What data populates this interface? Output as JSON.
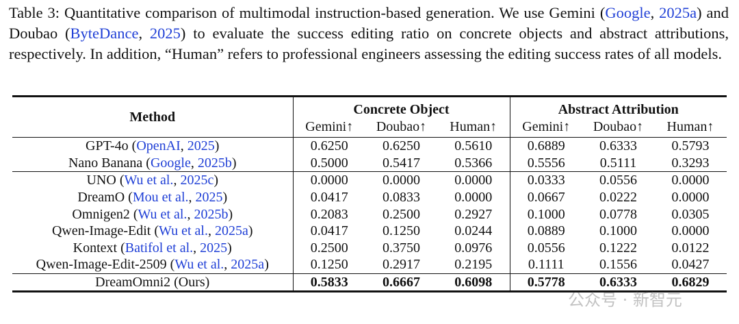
{
  "caption": {
    "parts": [
      {
        "text": "Table 3:  Quantitative comparison of multimodal instruction-based generation.  We use Gemini ("
      },
      {
        "text": "Google",
        "cite": true
      },
      {
        "text": ", "
      },
      {
        "text": "2025a",
        "cite": true
      },
      {
        "text": ") and Doubao ("
      },
      {
        "text": "ByteDance",
        "cite": true
      },
      {
        "text": ", "
      },
      {
        "text": "2025",
        "cite": true
      },
      {
        "text": ") to evaluate the success editing ratio on concrete objects and abstract attributions, respectively. In addition, “Human” refers to professional engineers assessing the editing success rates of all models."
      }
    ]
  },
  "table": {
    "header": {
      "method": "Method",
      "groups": [
        "Concrete Object",
        "Abstract Attribution"
      ],
      "columns": [
        "Gemini↑",
        "Doubao↑",
        "Human↑",
        "Gemini↑",
        "Doubao↑",
        "Human↑"
      ]
    },
    "sections": [
      [
        {
          "method": [
            {
              "text": "GPT-4o ("
            },
            {
              "text": "OpenAI",
              "cite": true
            },
            {
              "text": ", "
            },
            {
              "text": "2025",
              "cite": true
            },
            {
              "text": ")"
            }
          ],
          "values": [
            "0.6250",
            "0.6250",
            "0.5610",
            "0.6889",
            "0.6333",
            "0.5793"
          ]
        },
        {
          "method": [
            {
              "text": "Nano Banana ("
            },
            {
              "text": "Google",
              "cite": true
            },
            {
              "text": ", "
            },
            {
              "text": "2025b",
              "cite": true
            },
            {
              "text": ")"
            }
          ],
          "values": [
            "0.5000",
            "0.5417",
            "0.5366",
            "0.5556",
            "0.5111",
            "0.3293"
          ]
        }
      ],
      [
        {
          "method": [
            {
              "text": "UNO ("
            },
            {
              "text": "Wu et al.",
              "cite": true
            },
            {
              "text": ", "
            },
            {
              "text": "2025c",
              "cite": true
            },
            {
              "text": ")"
            }
          ],
          "values": [
            "0.0000",
            "0.0000",
            "0.0000",
            "0.0333",
            "0.0556",
            "0.0000"
          ]
        },
        {
          "method": [
            {
              "text": "DreamO ("
            },
            {
              "text": "Mou et al.",
              "cite": true
            },
            {
              "text": ", "
            },
            {
              "text": "2025",
              "cite": true
            },
            {
              "text": ")"
            }
          ],
          "values": [
            "0.0417",
            "0.0833",
            "0.0000",
            "0.0667",
            "0.0222",
            "0.0000"
          ]
        },
        {
          "method": [
            {
              "text": "Omnigen2 ("
            },
            {
              "text": "Wu et al.",
              "cite": true
            },
            {
              "text": ", "
            },
            {
              "text": "2025b",
              "cite": true
            },
            {
              "text": ")"
            }
          ],
          "values": [
            "0.2083",
            "0.2500",
            "0.2927",
            "0.1000",
            "0.0778",
            "0.0305"
          ]
        },
        {
          "method": [
            {
              "text": "Qwen-Image-Edit ("
            },
            {
              "text": "Wu et al.",
              "cite": true
            },
            {
              "text": ", "
            },
            {
              "text": "2025a",
              "cite": true
            },
            {
              "text": ")"
            }
          ],
          "values": [
            "0.0417",
            "0.1250",
            "0.0244",
            "0.0889",
            "0.1000",
            "0.0000"
          ]
        },
        {
          "method": [
            {
              "text": "Kontext ("
            },
            {
              "text": "Batifol et al.",
              "cite": true
            },
            {
              "text": ", "
            },
            {
              "text": "2025",
              "cite": true
            },
            {
              "text": ")"
            }
          ],
          "values": [
            "0.2500",
            "0.3750",
            "0.0976",
            "0.0556",
            "0.1222",
            "0.0122"
          ]
        },
        {
          "method": [
            {
              "text": "Qwen-Image-Edit-2509 ("
            },
            {
              "text": "Wu et al.",
              "cite": true
            },
            {
              "text": ", "
            },
            {
              "text": "2025a",
              "cite": true
            },
            {
              "text": ")"
            }
          ],
          "values": [
            "0.1250",
            "0.2917",
            "0.2195",
            "0.1111",
            "0.1556",
            "0.0427"
          ]
        }
      ],
      [
        {
          "method": [
            {
              "text": "DreamOmni2 (Ours)"
            }
          ],
          "values": [
            "0.5833",
            "0.6667",
            "0.6098",
            "0.5778",
            "0.6333",
            "0.6829"
          ],
          "bold": true
        }
      ]
    ]
  },
  "watermark": "公众号 · 新智元"
}
